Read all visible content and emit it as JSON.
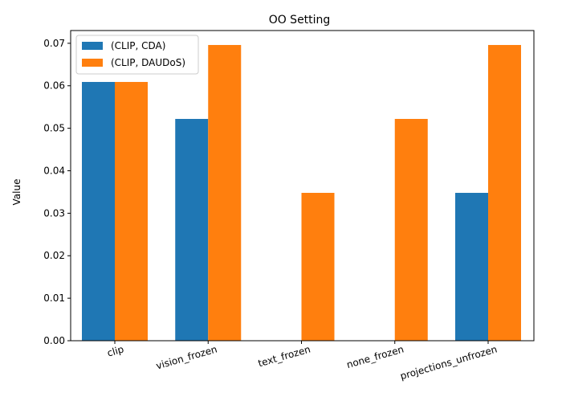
{
  "chart_data": {
    "type": "bar",
    "title": "OO Setting",
    "xlabel": "",
    "ylabel": "Value",
    "categories": [
      "clip",
      "vision_frozen",
      "text_frozen",
      "none_frozen",
      "projections_unfrozen"
    ],
    "series": [
      {
        "name": "(CLIP, CDA)",
        "values": [
          0.0609,
          0.0522,
          0.0,
          0.0,
          0.0348
        ],
        "color": "#1f77b4"
      },
      {
        "name": "(CLIP, DAUDoS)",
        "values": [
          0.0609,
          0.0696,
          0.0348,
          0.0522,
          0.0696
        ],
        "color": "#ff7f0e"
      }
    ],
    "ylim": [
      0,
      0.073
    ],
    "yticks": [
      "0.00",
      "0.01",
      "0.02",
      "0.03",
      "0.04",
      "0.05",
      "0.06",
      "0.07"
    ],
    "grid": false,
    "legend_position": "top-left"
  }
}
